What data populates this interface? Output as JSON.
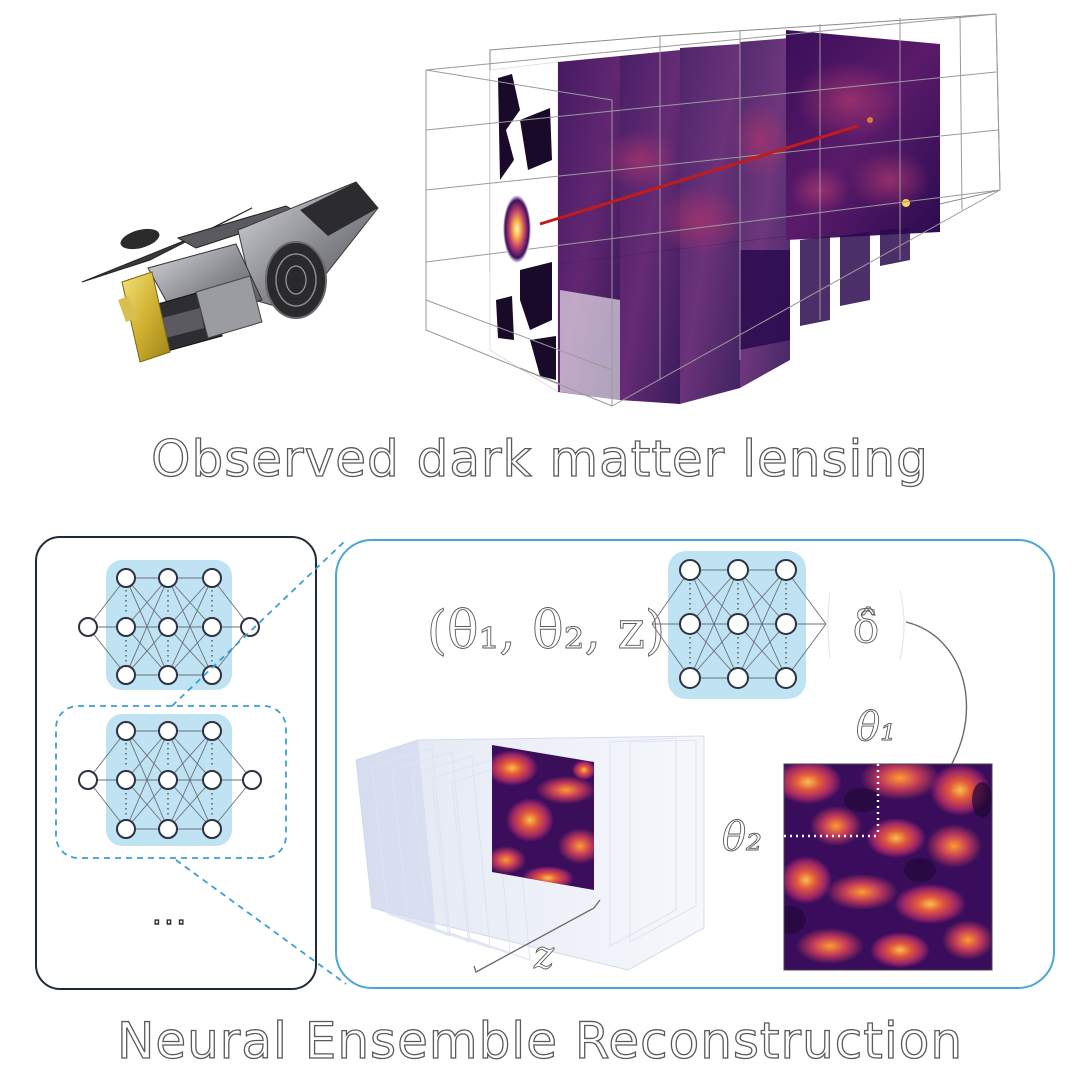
{
  "titles": {
    "top": "Observed dark matter lensing",
    "bottom": "Neural Ensemble Reconstruction"
  },
  "formula": {
    "input": "(θ₁, θ₂, z)",
    "output": "δ̂"
  },
  "labels": {
    "theta1": "θ₁",
    "theta2": "θ₂",
    "z": "z",
    "ellipsis": "..."
  },
  "icons": {
    "telescope": "space-telescope-icon",
    "network": "neural-network-icon"
  },
  "colors": {
    "panel_left_border": "#1e2b3a",
    "panel_right_border": "#4aa6d6",
    "network_fill": "#bfe3f3",
    "zoom_line": "#3a9fd4",
    "density_dark": "#2a0b4f",
    "density_mid": "#b9326b",
    "density_bright": "#f6a126",
    "light_ray": "#c21b1b"
  }
}
